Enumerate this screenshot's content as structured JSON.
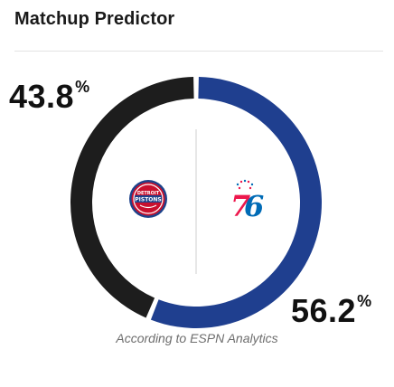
{
  "widget": {
    "title": "Matchup Predictor",
    "footer": "According to ESPN Analytics"
  },
  "teams": {
    "away": {
      "name": "Detroit Pistons",
      "win_pct": 43.8,
      "win_pct_text": "43.8",
      "color": "#1d1d1d",
      "logo_icon": "pistons-logo-icon",
      "logo_color": "#c8102e",
      "logo_accent": "#1d428a"
    },
    "home": {
      "name": "Philadelphia 76ers",
      "win_pct": 56.2,
      "win_pct_text": "56.2",
      "color": "#1f3f8f",
      "logo_icon": "sixers-76-logo-icon",
      "logo_color": "#ed174c",
      "logo_accent": "#006bb6"
    }
  },
  "percent_symbol": "%"
}
